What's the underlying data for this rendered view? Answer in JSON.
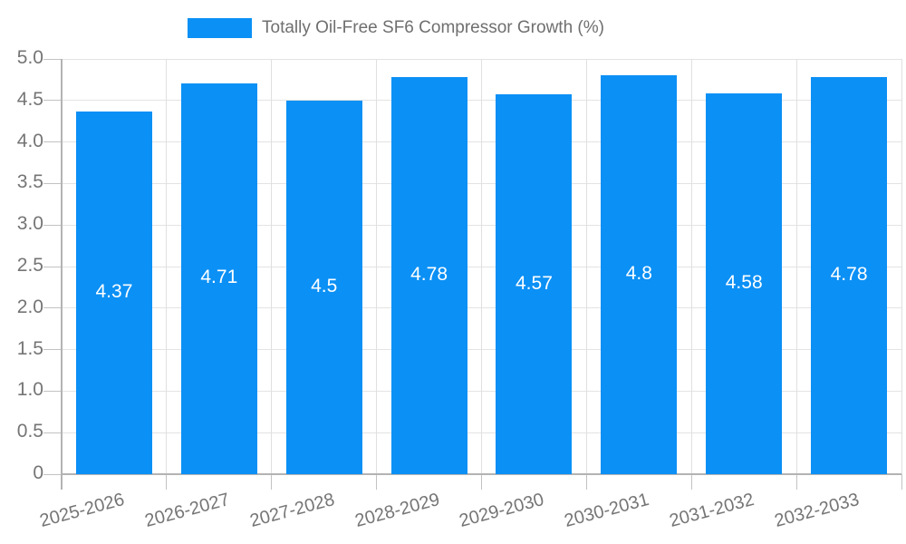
{
  "legend": {
    "label": "Totally Oil-Free SF6 Compressor Growth (%)"
  },
  "colors": {
    "bar": "#0b90f5",
    "axis": "#b3b3b3",
    "grid_horizontal": "#e3e3e3",
    "grid_vertical": "#e0e0e0",
    "tick": "#c2c2c2",
    "label_text": "#757575",
    "value_label_text": "#ffffff",
    "background": "#ffffff"
  },
  "chart_data": {
    "type": "bar",
    "title": "Totally Oil-Free SF6 Compressor Growth (%)",
    "categories": [
      "2025-2026",
      "2026-2027",
      "2027-2028",
      "2028-2029",
      "2029-2030",
      "2030-2031",
      "2031-2032",
      "2032-2033"
    ],
    "values": [
      4.37,
      4.71,
      4.5,
      4.78,
      4.57,
      4.8,
      4.58,
      4.78
    ],
    "value_labels": [
      "4.37",
      "4.71",
      "4.5",
      "4.78",
      "4.57",
      "4.8",
      "4.58",
      "4.78"
    ],
    "xlabel": "",
    "ylabel": "",
    "ylim": [
      0,
      5
    ],
    "ytick_step": 0.5,
    "ytick_labels": [
      "0",
      "0.5",
      "1.0",
      "1.5",
      "2.0",
      "2.5",
      "3.0",
      "3.5",
      "4.0",
      "4.5",
      "5.0"
    ],
    "grid": true,
    "legend_position": "top"
  }
}
